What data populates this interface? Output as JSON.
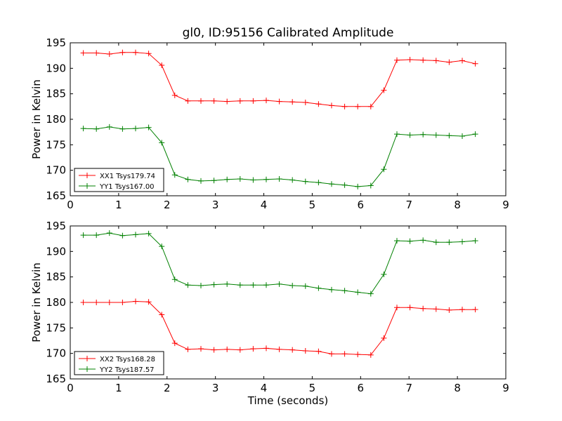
{
  "title": "gl0, ID:95156 Calibrated Amplitude",
  "colors": {
    "red": "#ff0000",
    "green": "#008000",
    "frame": "#000000",
    "background": "#ffffff"
  },
  "chart_data": [
    {
      "type": "line",
      "ylabel": "Power in Kelvin",
      "xlabel": "",
      "xlim": [
        0,
        9
      ],
      "ylim": [
        165,
        195
      ],
      "xticks": [
        0,
        1,
        2,
        3,
        4,
        5,
        6,
        7,
        8,
        9
      ],
      "yticks": [
        165,
        170,
        175,
        180,
        185,
        190,
        195
      ],
      "legend_position": "lower-left",
      "grid": false,
      "x": [
        0.27,
        0.54,
        0.81,
        1.08,
        1.35,
        1.62,
        1.89,
        2.16,
        2.43,
        2.7,
        2.97,
        3.24,
        3.51,
        3.78,
        4.05,
        4.32,
        4.59,
        4.86,
        5.13,
        5.4,
        5.67,
        5.94,
        6.21,
        6.48,
        6.75,
        7.02,
        7.29,
        7.56,
        7.83,
        8.1,
        8.37
      ],
      "series": [
        {
          "name": "XX1 Tsys179.74",
          "color": "#ff0000",
          "values": [
            193.0,
            193.0,
            192.8,
            193.1,
            193.1,
            192.9,
            190.6,
            184.7,
            183.6,
            183.6,
            183.6,
            183.5,
            183.6,
            183.6,
            183.7,
            183.5,
            183.4,
            183.3,
            183.0,
            182.7,
            182.5,
            182.5,
            182.5,
            185.7,
            191.6,
            191.7,
            191.6,
            191.5,
            191.2,
            191.5,
            190.9
          ]
        },
        {
          "name": "YY1 Tsys167.00",
          "color": "#008000",
          "values": [
            178.2,
            178.1,
            178.5,
            178.1,
            178.2,
            178.4,
            175.4,
            169.1,
            168.2,
            167.9,
            168.0,
            168.2,
            168.3,
            168.1,
            168.2,
            168.3,
            168.1,
            167.8,
            167.6,
            167.3,
            167.1,
            166.8,
            167.0,
            170.2,
            177.1,
            176.9,
            177.0,
            176.9,
            176.8,
            176.7,
            177.1
          ]
        }
      ]
    },
    {
      "type": "line",
      "ylabel": "Power in Kelvin",
      "xlabel": "Time (seconds)",
      "xlim": [
        0,
        9
      ],
      "ylim": [
        165,
        195
      ],
      "xticks": [
        0,
        1,
        2,
        3,
        4,
        5,
        6,
        7,
        8,
        9
      ],
      "yticks": [
        165,
        170,
        175,
        180,
        185,
        190,
        195
      ],
      "legend_position": "lower-left",
      "grid": false,
      "x": [
        0.27,
        0.54,
        0.81,
        1.08,
        1.35,
        1.62,
        1.89,
        2.16,
        2.43,
        2.7,
        2.97,
        3.24,
        3.51,
        3.78,
        4.05,
        4.32,
        4.59,
        4.86,
        5.13,
        5.4,
        5.67,
        5.94,
        6.21,
        6.48,
        6.75,
        7.02,
        7.29,
        7.56,
        7.83,
        8.1,
        8.37
      ],
      "series": [
        {
          "name": "XX2 Tsys168.28",
          "color": "#ff0000",
          "values": [
            180.0,
            180.0,
            180.0,
            180.0,
            180.2,
            180.1,
            177.6,
            172.0,
            170.8,
            170.9,
            170.7,
            170.8,
            170.7,
            170.9,
            171.0,
            170.8,
            170.7,
            170.5,
            170.4,
            169.9,
            169.9,
            169.8,
            169.7,
            173.0,
            179.0,
            179.0,
            178.8,
            178.7,
            178.5,
            178.6,
            178.6
          ]
        },
        {
          "name": "YY2 Tsys187.57",
          "color": "#008000",
          "values": [
            193.2,
            193.2,
            193.6,
            193.1,
            193.3,
            193.5,
            191.0,
            184.5,
            183.4,
            183.3,
            183.5,
            183.6,
            183.4,
            183.4,
            183.4,
            183.6,
            183.3,
            183.2,
            182.8,
            182.5,
            182.3,
            182.0,
            181.7,
            185.5,
            192.1,
            192.0,
            192.2,
            191.8,
            191.8,
            191.9,
            192.1
          ]
        }
      ]
    }
  ]
}
